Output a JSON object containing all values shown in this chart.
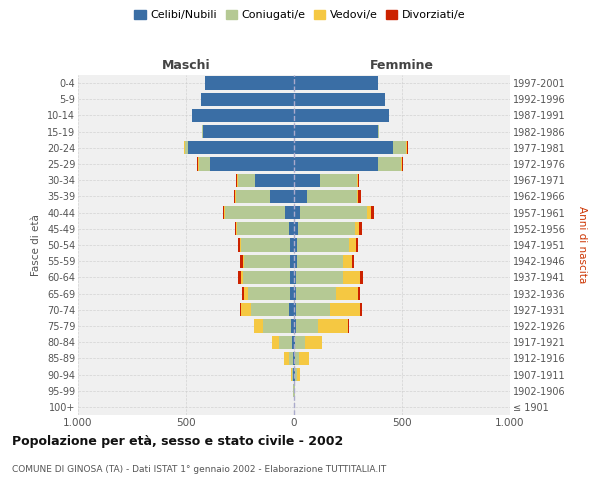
{
  "age_groups": [
    "100+",
    "95-99",
    "90-94",
    "85-89",
    "80-84",
    "75-79",
    "70-74",
    "65-69",
    "60-64",
    "55-59",
    "50-54",
    "45-49",
    "40-44",
    "35-39",
    "30-34",
    "25-29",
    "20-24",
    "15-19",
    "10-14",
    "5-9",
    "0-4"
  ],
  "birth_years": [
    "≤ 1901",
    "1902-1906",
    "1907-1911",
    "1912-1916",
    "1917-1921",
    "1922-1926",
    "1927-1931",
    "1932-1936",
    "1937-1941",
    "1942-1946",
    "1947-1951",
    "1952-1956",
    "1957-1961",
    "1962-1966",
    "1967-1971",
    "1972-1976",
    "1977-1981",
    "1982-1986",
    "1987-1991",
    "1992-1996",
    "1997-2001"
  ],
  "maschi": {
    "celibi": [
      0,
      1,
      3,
      5,
      8,
      15,
      25,
      20,
      20,
      18,
      20,
      25,
      40,
      110,
      180,
      390,
      490,
      420,
      470,
      430,
      410
    ],
    "coniugati": [
      0,
      2,
      8,
      20,
      60,
      130,
      175,
      195,
      215,
      215,
      225,
      240,
      280,
      160,
      80,
      50,
      15,
      5,
      2,
      2,
      0
    ],
    "vedovi": [
      0,
      1,
      5,
      20,
      35,
      40,
      45,
      15,
      10,
      5,
      5,
      2,
      2,
      2,
      2,
      5,
      5,
      0,
      0,
      0,
      0
    ],
    "divorziati": [
      0,
      0,
      0,
      0,
      0,
      0,
      5,
      10,
      15,
      12,
      10,
      8,
      8,
      8,
      5,
      5,
      0,
      0,
      0,
      0,
      0
    ]
  },
  "femmine": {
    "nubili": [
      0,
      1,
      3,
      5,
      5,
      10,
      10,
      10,
      10,
      12,
      15,
      18,
      30,
      60,
      120,
      390,
      460,
      390,
      440,
      420,
      390
    ],
    "coniugate": [
      0,
      2,
      10,
      20,
      45,
      100,
      155,
      185,
      215,
      215,
      240,
      265,
      310,
      230,
      170,
      105,
      60,
      5,
      2,
      0,
      0
    ],
    "vedove": [
      0,
      3,
      15,
      45,
      80,
      140,
      140,
      100,
      80,
      40,
      30,
      20,
      15,
      8,
      5,
      5,
      5,
      0,
      0,
      0,
      0
    ],
    "divorziate": [
      0,
      0,
      0,
      0,
      0,
      5,
      8,
      10,
      15,
      10,
      10,
      10,
      15,
      10,
      5,
      5,
      5,
      0,
      0,
      0,
      0
    ]
  },
  "colors": {
    "celibi": "#3a6ea5",
    "coniugati": "#b5c994",
    "vedovi": "#f5c842",
    "divorziati": "#cc2200"
  },
  "legend_labels": [
    "Celibi/Nubili",
    "Coniugati/e",
    "Vedovi/e",
    "Divorziati/e"
  ],
  "legend_colors": [
    "#3a6ea5",
    "#b5c994",
    "#f5c842",
    "#cc2200"
  ],
  "title": "Popolazione per età, sesso e stato civile - 2002",
  "subtitle": "COMUNE DI GINOSA (TA) - Dati ISTAT 1° gennaio 2002 - Elaborazione TUTTITALIA.IT",
  "ylabel_left": "Fasce di età",
  "ylabel_right": "Anni di nascita",
  "xlabel_left": "Maschi",
  "xlabel_right": "Femmine",
  "xlim": 1000,
  "bg_color": "#f0f0f0",
  "plot_bg": "#ffffff"
}
